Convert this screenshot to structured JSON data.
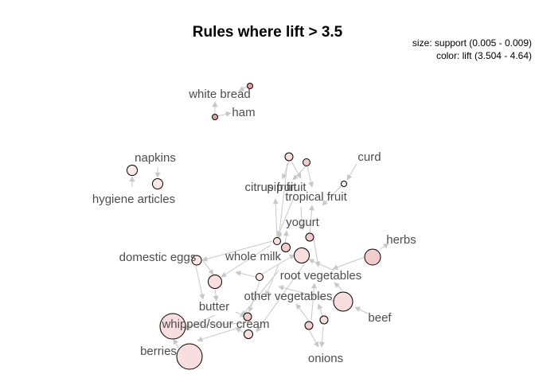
{
  "title": "Rules where lift > 3.5",
  "legend": {
    "size": "size: support (0.005 - 0.009)",
    "color": "color: lift (3.504 - 4.64)"
  },
  "colors": {
    "rule_high_lift": "#e8a0a0",
    "rule_mid_lift": "#f3cccc",
    "rule_low_lift": "#f8dede",
    "rule_min_lift": "#fbeaea",
    "edge": "#c8c8c8",
    "item_text": "#4d4d4d"
  },
  "items": [
    {
      "id": "white_bread",
      "label": "white bread"
    },
    {
      "id": "ham",
      "label": "ham"
    },
    {
      "id": "napkins",
      "label": "napkins"
    },
    {
      "id": "hygiene_articles",
      "label": "hygiene articles"
    },
    {
      "id": "curd",
      "label": "curd"
    },
    {
      "id": "citrus_fruit",
      "label": "citrus fruit"
    },
    {
      "id": "pip_fruit",
      "label": "pip fruit"
    },
    {
      "id": "tropical_fruit",
      "label": "tropical fruit"
    },
    {
      "id": "yogurt",
      "label": "yogurt"
    },
    {
      "id": "herbs",
      "label": "herbs"
    },
    {
      "id": "domestic_eggs",
      "label": "domestic eggs"
    },
    {
      "id": "whole_milk",
      "label": "whole milk"
    },
    {
      "id": "root_vegetables",
      "label": "root vegetables"
    },
    {
      "id": "butter",
      "label": "butter"
    },
    {
      "id": "other_vegetables",
      "label": "other vegetables"
    },
    {
      "id": "beef",
      "label": "beef"
    },
    {
      "id": "whipped_sour_cream",
      "label": "whipped/sour cream"
    },
    {
      "id": "berries",
      "label": "berries"
    },
    {
      "id": "onions",
      "label": "onions"
    }
  ]
}
